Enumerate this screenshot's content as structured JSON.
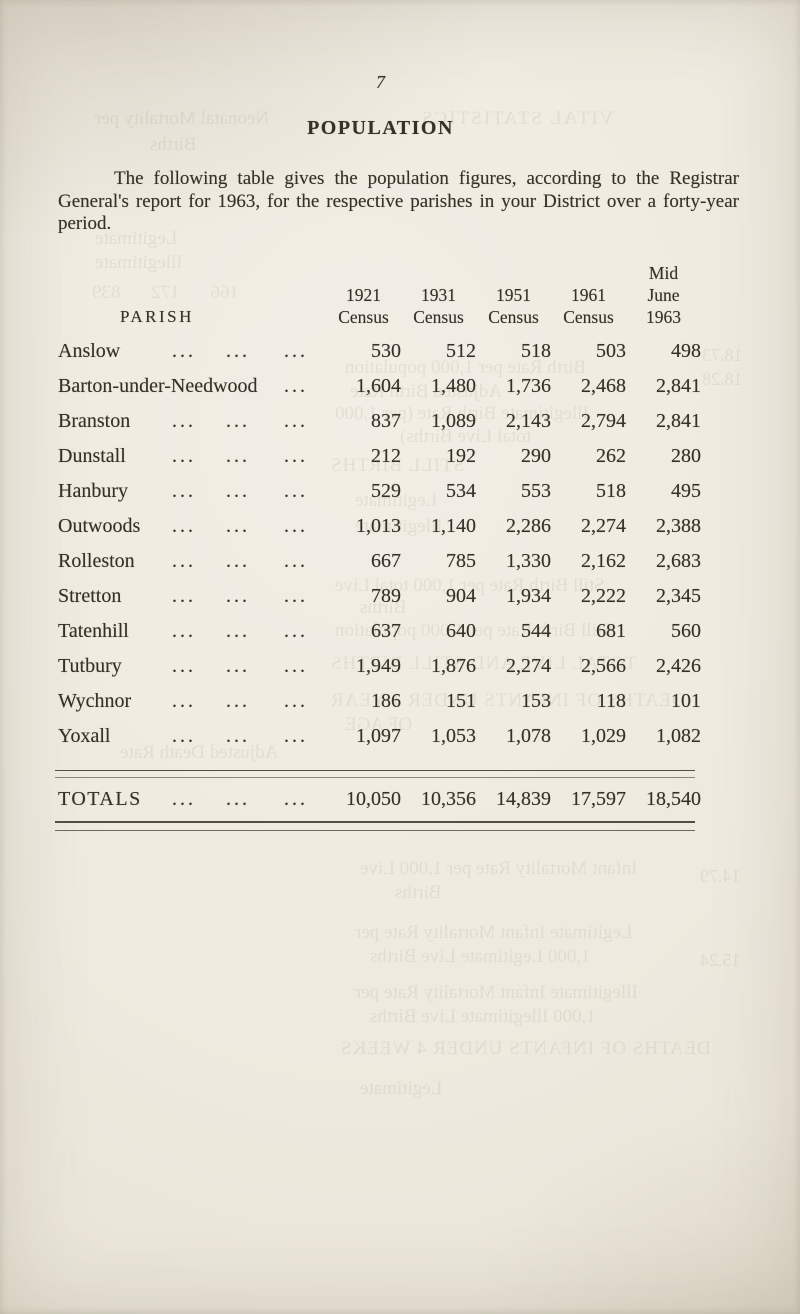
{
  "page": {
    "number": "7",
    "title": "POPULATION",
    "intro": "The following table gives the population figures, according to the Registrar General's report for 1963, for the respective parishes in your District over a forty-year period."
  },
  "table": {
    "parish_header": "PARISH",
    "leader": "...",
    "columns": [
      {
        "year": "1921",
        "label": "Census"
      },
      {
        "year": "1931",
        "label": "Census"
      },
      {
        "year": "1951",
        "label": "Census"
      },
      {
        "year": "1961",
        "label": "Census"
      },
      {
        "pre": "Mid",
        "year": "June",
        "label": "1963"
      }
    ],
    "rows": [
      {
        "name": "Anslow",
        "leaders": 3,
        "values": [
          "530",
          "512",
          "518",
          "503",
          "498"
        ]
      },
      {
        "name": "Barton-under-Needwood",
        "leaders": 1,
        "values": [
          "1,604",
          "1,480",
          "1,736",
          "2,468",
          "2,841"
        ]
      },
      {
        "name": "Branston",
        "leaders": 3,
        "values": [
          "837",
          "1,089",
          "2,143",
          "2,794",
          "2,841"
        ]
      },
      {
        "name": "Dunstall",
        "leaders": 3,
        "values": [
          "212",
          "192",
          "290",
          "262",
          "280"
        ]
      },
      {
        "name": "Hanbury",
        "leaders": 3,
        "values": [
          "529",
          "534",
          "553",
          "518",
          "495"
        ]
      },
      {
        "name": "Outwoods",
        "leaders": 3,
        "values": [
          "1,013",
          "1,140",
          "2,286",
          "2,274",
          "2,388"
        ]
      },
      {
        "name": "Rolleston",
        "leaders": 3,
        "values": [
          "667",
          "785",
          "1,330",
          "2,162",
          "2,683"
        ]
      },
      {
        "name": "Stretton",
        "leaders": 3,
        "values": [
          "789",
          "904",
          "1,934",
          "2,222",
          "2,345"
        ]
      },
      {
        "name": "Tatenhill",
        "leaders": 3,
        "values": [
          "637",
          "640",
          "544",
          "681",
          "560"
        ]
      },
      {
        "name": "Tutbury",
        "leaders": 3,
        "values": [
          "1,949",
          "1,876",
          "2,274",
          "2,566",
          "2,426"
        ]
      },
      {
        "name": "Wychnor",
        "leaders": 3,
        "values": [
          "186",
          "151",
          "153",
          "118",
          "101"
        ]
      },
      {
        "name": "Yoxall",
        "leaders": 3,
        "values": [
          "1,097",
          "1,053",
          "1,078",
          "1,029",
          "1,082"
        ]
      }
    ],
    "totals": {
      "name": "TOTALS",
      "leaders": 3,
      "values": [
        "10,050",
        "10,356",
        "14,839",
        "17,597",
        "18,540"
      ]
    }
  },
  "ghost": {
    "lines": [
      "Neonatal Mortality per",
      "VITAL STATISTICS",
      "Births",
      "Legitimate",
      "Illegitimate",
      "166  172  839",
      "18.73",
      "18.28",
      "Birth Rate per 1,000 population",
      "Adjusted Birth Rate",
      "Illegitimate Birth Rate (per 1,000",
      "total Live Births)",
      "STILL BIRTHS",
      "Legitimate",
      "Illegitimate",
      "Still Birth Rate per 1,000 total Live",
      "Births",
      "Still Birth Rate per 1,000 population",
      "TOTAL LIVE AND STILL BIRTHS",
      "DEATHS OF INFANTS UNDER 1 YEAR",
      "OF AGE",
      "Adjusted Death Rate",
      "Infant Mortality Rate per 1,000 Live",
      "Births",
      "14.79",
      "Legitimate Infant Mortality Rate per",
      "1,000 Legitimate Live Births",
      "Illegitimate Infant Mortality Rate per",
      "1,000 Illegitimate Live Births",
      "DEATHS OF INFANTS UNDER 4 WEEKS",
      "15.24",
      "Legitimate"
    ]
  }
}
